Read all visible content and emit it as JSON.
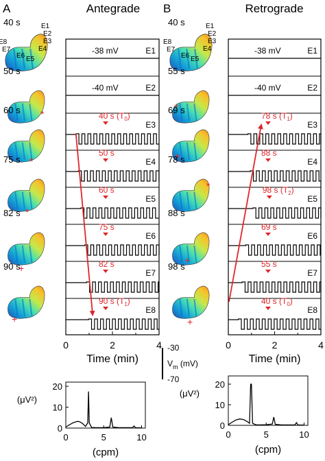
{
  "panels": [
    {
      "letter": "A",
      "title": "Antegrade",
      "stomach_times": [
        "40 s",
        "50 s",
        "60 s",
        "75 s",
        "82 s",
        "90 s"
      ],
      "electrode_labels": [
        "E1",
        "E2",
        "E3",
        "E4",
        "E5",
        "E6",
        "E7",
        "E8"
      ],
      "channels": [
        "E1",
        "E2",
        "E3",
        "E4",
        "E5",
        "E6",
        "E7",
        "E8"
      ],
      "voltage_labels": [
        "-38 mV",
        "-40 mV"
      ],
      "onset_labels": [
        "40 s (T",
        "50 s",
        "60 s",
        "75 s",
        "82 s",
        "90 s (T"
      ],
      "onset_subscripts": [
        "0",
        "",
        "",
        "",
        "",
        "1"
      ],
      "onset_times_s": [
        40,
        50,
        60,
        75,
        82,
        90
      ],
      "x_ticks": [
        "0",
        "2",
        "4"
      ],
      "x_label": "Time (min)"
    },
    {
      "letter": "B",
      "title": "Retrograde",
      "stomach_times": [
        "40 s",
        "55 s",
        "69 s",
        "78 s",
        "88 s",
        "98 s"
      ],
      "electrode_labels": [
        "E1",
        "E2",
        "E3",
        "E4",
        "E5",
        "E6",
        "E7",
        "E8"
      ],
      "channels": [
        "E1",
        "E2",
        "E3",
        "E4",
        "E5",
        "E6",
        "E7",
        "E8"
      ],
      "voltage_labels": [
        "-38 mV",
        "-40 mV"
      ],
      "onset_labels": [
        "78 s (T",
        "88 s",
        "98 s (T",
        "69 s",
        "55 s",
        "40 s (T"
      ],
      "onset_subscripts": [
        "1",
        "",
        "2",
        "",
        "",
        "0"
      ],
      "onset_times_s": [
        78,
        88,
        98,
        69,
        55,
        40
      ],
      "x_ticks": [
        "0",
        "2",
        "4"
      ],
      "x_label": "Time (min)"
    }
  ],
  "scale_bar": {
    "top": "-30",
    "bottom": "-70",
    "label": "V",
    "sub": "m",
    "unit": " (mV)"
  },
  "colors": {
    "annotation_red": "#e0262b",
    "trace": "#000000"
  },
  "chart_data": [
    {
      "type": "line",
      "xlabel": "(cpm)",
      "ylabel": "(μV²)",
      "x_ticks": [
        "0",
        "5",
        "10"
      ],
      "y_ticks": [
        "0",
        "10",
        "20"
      ],
      "xlim": [
        0,
        10.5
      ],
      "ylim": [
        0,
        22
      ],
      "series": [
        {
          "x": [
            0,
            0.5,
            1,
            1.5,
            1.8,
            2.2,
            2.6,
            2.9,
            3.0,
            3.1,
            3.4,
            4,
            5,
            5.8,
            6.0,
            6.2,
            7,
            8,
            8.8,
            9.0,
            9.2,
            10
          ],
          "values": [
            0.5,
            1.6,
            2.6,
            3.2,
            3.1,
            2.2,
            0.8,
            2.5,
            17.5,
            2.5,
            0.3,
            0.2,
            0.2,
            0.5,
            5.0,
            0.5,
            0.2,
            0.2,
            0.2,
            1.0,
            0.2,
            0.1
          ]
        }
      ]
    },
    {
      "type": "line",
      "xlabel": "(cpm)",
      "ylabel": "(μV²)",
      "x_ticks": [
        "0",
        "5",
        "10"
      ],
      "y_ticks": [
        "0",
        "10",
        "20"
      ],
      "xlim": [
        0,
        10.5
      ],
      "ylim": [
        0,
        24
      ],
      "series": [
        {
          "x": [
            0,
            0.5,
            1,
            1.5,
            2.0,
            2.5,
            2.8,
            2.95,
            3.05,
            3.2,
            3.6,
            4,
            5,
            5.8,
            6.0,
            6.2,
            7,
            8,
            8.8,
            9.0,
            9.2,
            10
          ],
          "values": [
            0.3,
            1.5,
            2.6,
            3.1,
            2.8,
            1.8,
            1.0,
            20.0,
            20.0,
            1.0,
            0.3,
            0.2,
            0.3,
            0.6,
            4.0,
            0.5,
            0.2,
            0.2,
            0.2,
            1.3,
            0.2,
            0.1
          ]
        }
      ]
    }
  ]
}
